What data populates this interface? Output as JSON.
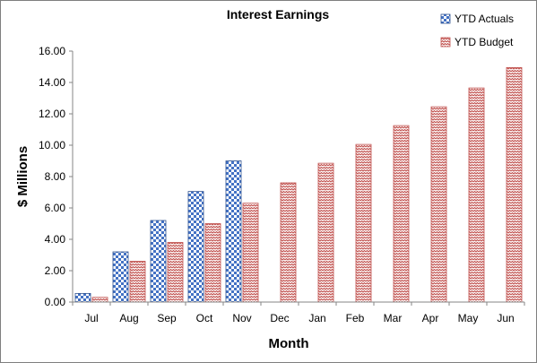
{
  "chart_data": {
    "type": "bar",
    "title": "Interest Earnings",
    "xlabel": "Month",
    "ylabel": "$ Millions",
    "categories": [
      "Jul",
      "Aug",
      "Sep",
      "Oct",
      "Nov",
      "Dec",
      "Jan",
      "Feb",
      "Mar",
      "Apr",
      "May",
      "Jun"
    ],
    "series": [
      {
        "name": "YTD Actuals",
        "color": "#4472c4",
        "pattern": "checkerboard",
        "values": [
          0.55,
          3.2,
          5.2,
          7.05,
          9.0,
          null,
          null,
          null,
          null,
          null,
          null,
          null
        ]
      },
      {
        "name": "YTD Budget",
        "color": "#c0504d",
        "pattern": "zigzag",
        "values": [
          0.3,
          2.6,
          3.8,
          5.0,
          6.3,
          7.6,
          8.85,
          10.05,
          11.25,
          12.45,
          13.65,
          14.95
        ]
      }
    ],
    "ylim": [
      0,
      16
    ],
    "yticks": [
      "0.00",
      "2.00",
      "4.00",
      "6.00",
      "8.00",
      "10.00",
      "12.00",
      "14.00",
      "16.00"
    ],
    "grid": false,
    "legend_position": "top-right"
  }
}
